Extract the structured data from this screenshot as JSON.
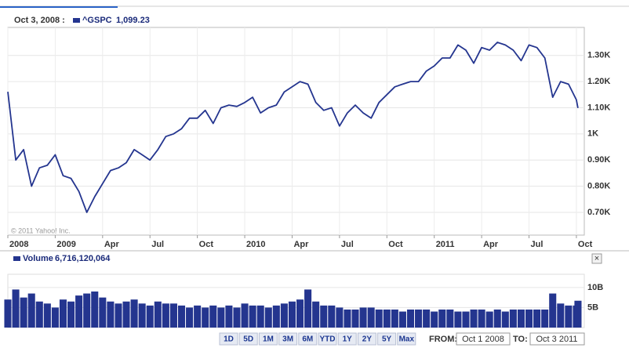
{
  "header": {
    "date": "Oct 3, 2008 :",
    "symbol": "^GSPC",
    "price": "1,099.23",
    "copyright": "© 2011 Yahoo! Inc."
  },
  "volume_header": {
    "label": "Volume",
    "value": "6,716,120,064",
    "close": "×"
  },
  "controls": {
    "ranges": [
      "1D",
      "5D",
      "1M",
      "3M",
      "6M",
      "YTD",
      "1Y",
      "2Y",
      "5Y",
      "Max"
    ],
    "from_label": "FROM:",
    "from": "Oct 1 2008",
    "to_label": "TO:",
    "to": "Oct 3 2011"
  },
  "chart_data": [
    {
      "type": "line",
      "grid": true,
      "y_axis_side": "right",
      "x": [
        0,
        0.5,
        1,
        1.5,
        2,
        2.5,
        3,
        3.5,
        4,
        4.5,
        5,
        5.5,
        6,
        6.5,
        7,
        7.5,
        8,
        8.5,
        9,
        9.5,
        10,
        10.5,
        11,
        11.5,
        12,
        12.5,
        13,
        13.5,
        14,
        14.5,
        15,
        15.5,
        16,
        16.5,
        17,
        17.5,
        18,
        18.5,
        19,
        19.5,
        20,
        20.5,
        21,
        21.5,
        22,
        22.5,
        23,
        23.5,
        24,
        24.5,
        25,
        25.5,
        26,
        26.5,
        27,
        27.5,
        28,
        28.5,
        29,
        29.5,
        30,
        30.5,
        31,
        31.5,
        32,
        32.5,
        33,
        33.5,
        34,
        34.5,
        35,
        35.5,
        36,
        36.1
      ],
      "series": [
        {
          "name": "^GSPC",
          "color": "#24358f",
          "values": [
            1161,
            900,
            940,
            800,
            870,
            880,
            920,
            840,
            830,
            780,
            700,
            760,
            810,
            860,
            870,
            890,
            940,
            920,
            900,
            940,
            990,
            1000,
            1020,
            1060,
            1060,
            1090,
            1040,
            1100,
            1110,
            1105,
            1120,
            1140,
            1080,
            1100,
            1110,
            1160,
            1180,
            1200,
            1190,
            1120,
            1090,
            1100,
            1030,
            1080,
            1110,
            1080,
            1060,
            1120,
            1150,
            1180,
            1190,
            1200,
            1200,
            1240,
            1260,
            1290,
            1290,
            1340,
            1320,
            1270,
            1330,
            1320,
            1350,
            1340,
            1320,
            1280,
            1340,
            1330,
            1290,
            1140,
            1200,
            1190,
            1130,
            1099
          ]
        }
      ],
      "xlim": [
        0,
        36.5
      ],
      "xticks": [
        {
          "value": 0,
          "label": "2008"
        },
        {
          "value": 3,
          "label": "2009"
        },
        {
          "value": 6,
          "label": "Apr"
        },
        {
          "value": 9,
          "label": "Jul"
        },
        {
          "value": 12,
          "label": "Oct"
        },
        {
          "value": 15,
          "label": "2010"
        },
        {
          "value": 18,
          "label": "Apr"
        },
        {
          "value": 21,
          "label": "Jul"
        },
        {
          "value": 24,
          "label": "Oct"
        },
        {
          "value": 27,
          "label": "2011"
        },
        {
          "value": 30,
          "label": "Apr"
        },
        {
          "value": 33,
          "label": "Jul"
        },
        {
          "value": 36,
          "label": "Oct"
        }
      ],
      "ylim": [
        613,
        1407
      ],
      "yticks": [
        {
          "value": 700,
          "label": "0.70K"
        },
        {
          "value": 800,
          "label": "0.80K"
        },
        {
          "value": 900,
          "label": "0.90K"
        },
        {
          "value": 1000,
          "label": "1K"
        },
        {
          "value": 1100,
          "label": "1.10K"
        },
        {
          "value": 1200,
          "label": "1.20K"
        },
        {
          "value": 1300,
          "label": "1.30K"
        }
      ]
    },
    {
      "type": "bar",
      "grid": true,
      "y_axis_side": "right",
      "x": [
        0,
        0.5,
        1,
        1.5,
        2,
        2.5,
        3,
        3.5,
        4,
        4.5,
        5,
        5.5,
        6,
        6.5,
        7,
        7.5,
        8,
        8.5,
        9,
        9.5,
        10,
        10.5,
        11,
        11.5,
        12,
        12.5,
        13,
        13.5,
        14,
        14.5,
        15,
        15.5,
        16,
        16.5,
        17,
        17.5,
        18,
        18.5,
        19,
        19.5,
        20,
        20.5,
        21,
        21.5,
        22,
        22.5,
        23,
        23.5,
        24,
        24.5,
        25,
        25.5,
        26,
        26.5,
        27,
        27.5,
        28,
        28.5,
        29,
        29.5,
        30,
        30.5,
        31,
        31.5,
        32,
        32.5,
        33,
        33.5,
        34,
        34.5,
        35,
        35.5,
        36,
        36.1
      ],
      "series": [
        {
          "name": "Volume",
          "color": "#24358f",
          "values": [
            7000000000.0,
            9500000000.0,
            7500000000.0,
            8500000000.0,
            6500000000.0,
            6000000000.0,
            5000000000.0,
            7000000000.0,
            6500000000.0,
            8000000000.0,
            8500000000.0,
            9000000000.0,
            7500000000.0,
            6500000000.0,
            6000000000.0,
            6500000000.0,
            7000000000.0,
            6000000000.0,
            5500000000.0,
            6500000000.0,
            6000000000.0,
            6000000000.0,
            5500000000.0,
            5000000000.0,
            5500000000.0,
            5000000000.0,
            5500000000.0,
            5000000000.0,
            5500000000.0,
            5000000000.0,
            6000000000.0,
            5500000000.0,
            5500000000.0,
            5000000000.0,
            5500000000.0,
            6000000000.0,
            6500000000.0,
            7000000000.0,
            9500000000.0,
            6500000000.0,
            5500000000.0,
            5500000000.0,
            5000000000.0,
            4500000000.0,
            4500000000.0,
            5000000000.0,
            5000000000.0,
            4500000000.0,
            4500000000.0,
            4500000000.0,
            4000000000.0,
            4500000000.0,
            4500000000.0,
            4500000000.0,
            4000000000.0,
            4500000000.0,
            4500000000.0,
            4000000000.0,
            4000000000.0,
            4500000000.0,
            4500000000.0,
            4000000000.0,
            4500000000.0,
            4000000000.0,
            4500000000.0,
            4500000000.0,
            4500000000.0,
            4500000000.0,
            4500000000.0,
            8500000000.0,
            6000000000.0,
            5500000000.0,
            5500000000.0,
            6700000000.0
          ]
        }
      ],
      "xlim": [
        0,
        36.5
      ],
      "ylim": [
        0,
        13300000000
      ],
      "yticks": [
        {
          "value": 5000000000,
          "label": "5B"
        },
        {
          "value": 10000000000,
          "label": "10B"
        }
      ]
    }
  ]
}
